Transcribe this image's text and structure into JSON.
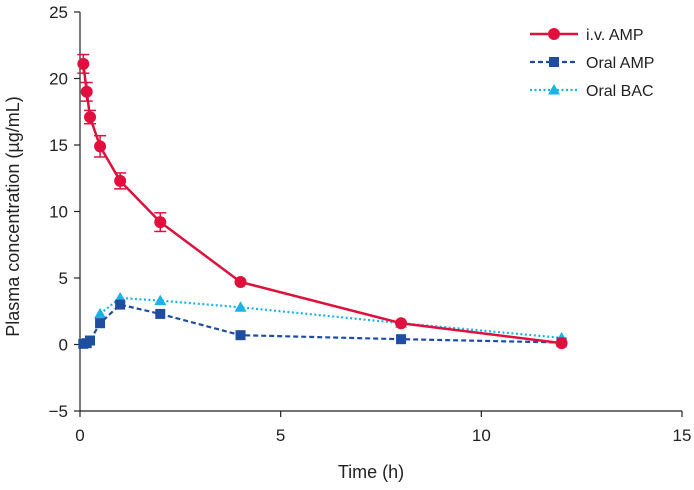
{
  "chart_data": {
    "type": "line",
    "title": "",
    "xlabel": "Time (h)",
    "ylabel": "Plasma concentration (µg/mL)",
    "xlim": [
      0,
      15
    ],
    "ylim": [
      -5,
      25
    ],
    "xticks": [
      0,
      5,
      10,
      15
    ],
    "yticks": [
      -5,
      0,
      5,
      10,
      15,
      20,
      25
    ],
    "grid": false,
    "legend_position": "top-right",
    "series": [
      {
        "name": "i.v. AMP",
        "color": "#e0103e",
        "line_style": "solid",
        "marker": "circle",
        "x": [
          0.083,
          0.167,
          0.25,
          0.5,
          1,
          2,
          4,
          8,
          12
        ],
        "y": [
          21.1,
          19.0,
          17.1,
          14.9,
          12.3,
          9.2,
          4.7,
          1.6,
          0.1
        ],
        "error": [
          0.7,
          0.7,
          0.5,
          0.8,
          0.6,
          0.7,
          0,
          0,
          0
        ]
      },
      {
        "name": "Oral AMP",
        "color": "#1f4ea0",
        "line_style": "dashed",
        "marker": "square",
        "x": [
          0.083,
          0.167,
          0.25,
          0.5,
          1,
          2,
          4,
          8,
          12
        ],
        "y": [
          0.05,
          0.1,
          0.3,
          1.6,
          3.0,
          2.3,
          0.7,
          0.4,
          0.15
        ],
        "error": [
          0,
          0,
          0,
          0,
          0,
          0,
          0,
          0,
          0
        ]
      },
      {
        "name": "Oral BAC",
        "color": "#1ab3e6",
        "line_style": "dotted",
        "marker": "triangle",
        "x": [
          0.5,
          1,
          2,
          4,
          8,
          12
        ],
        "y": [
          2.3,
          3.5,
          3.3,
          2.8,
          1.6,
          0.5
        ],
        "error": [
          0,
          0,
          0,
          0,
          0,
          0
        ]
      }
    ]
  }
}
